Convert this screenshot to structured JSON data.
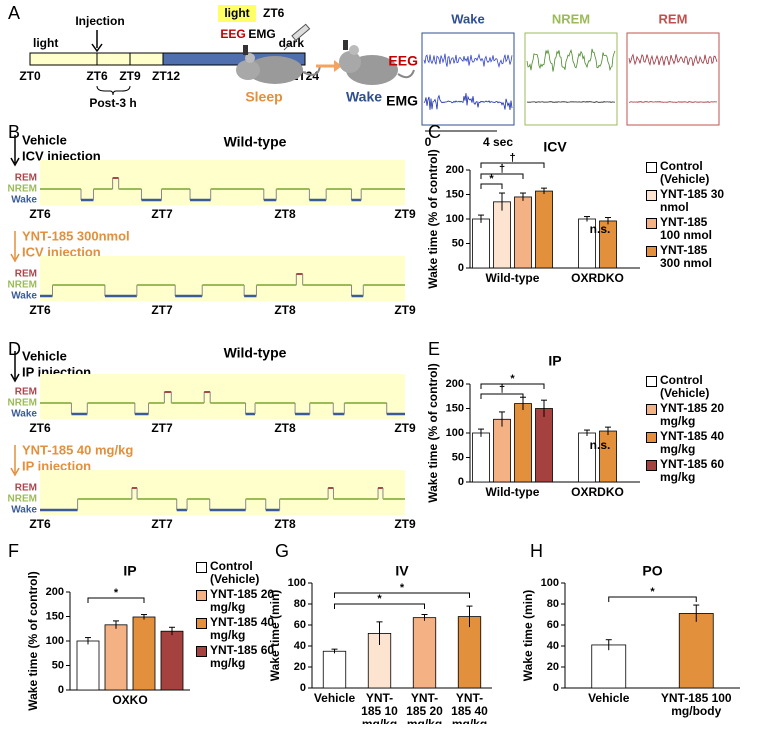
{
  "panel_labels": [
    "A",
    "B",
    "C",
    "D",
    "E",
    "F",
    "G",
    "H"
  ],
  "timeline": {
    "light": "light",
    "dark": "dark",
    "injection": "Injection",
    "ticks": [
      "ZT0",
      "ZT6",
      "ZT9",
      "ZT12",
      "ZT24"
    ],
    "window": "Post-3 h"
  },
  "schematic": {
    "light": "light",
    "time": "ZT6",
    "eeg": "EEG",
    "emg": "EMG",
    "before": "Sleep",
    "after": "Wake"
  },
  "traces": {
    "states": [
      "Wake",
      "NREM",
      "REM"
    ],
    "rows": [
      "EEG",
      "EMG"
    ],
    "scale": [
      "0",
      "4 sec"
    ]
  },
  "hypnograms": [
    {
      "title": "Wild-type",
      "top": {
        "treatment": "Vehicle",
        "route": "ICV injection"
      },
      "bottom": {
        "treatment": "YNT-185 300nmol",
        "route": "ICV injection"
      },
      "states": [
        "REM",
        "NREM",
        "Wake"
      ],
      "ticks": [
        "ZT6",
        "ZT7",
        "ZT8",
        "ZT9"
      ]
    },
    {
      "title": "Wild-type",
      "top": {
        "treatment": "Vehicle",
        "route": "IP injection"
      },
      "bottom": {
        "treatment": "YNT-185 40 mg/kg",
        "route": "IP injection"
      },
      "states": [
        "REM",
        "NREM",
        "Wake"
      ],
      "ticks": [
        "ZT6",
        "ZT7",
        "ZT8",
        "ZT9"
      ]
    }
  ],
  "chart_data": [
    {
      "type": "bar",
      "title": "ICV",
      "ylabel": "Wake time (% of control)",
      "categories": [
        "Wild-type",
        "OXRDKO"
      ],
      "series": [
        {
          "name": "Control (Vehicle)",
          "color": "#ffffff",
          "values": [
            100,
            100
          ],
          "errors": [
            8,
            5
          ]
        },
        {
          "name": "YNT-185 30 nmol",
          "color": "#fce4d0",
          "values": [
            135,
            null
          ],
          "errors": [
            18,
            null
          ]
        },
        {
          "name": "YNT-185 100 nmol",
          "color": "#f4b183",
          "values": [
            145,
            null
          ],
          "errors": [
            8,
            null
          ]
        },
        {
          "name": "YNT-185 300 nmol",
          "color": "#e2903c",
          "values": [
            157,
            96
          ],
          "errors": [
            6,
            7
          ]
        }
      ],
      "ylim": [
        0,
        200
      ],
      "yticks": [
        0,
        50,
        100,
        150,
        200
      ],
      "annotations": [
        "*",
        "†",
        "†"
      ],
      "note": "n.s."
    },
    {
      "type": "bar",
      "title": "IP",
      "ylabel": "Wake time (% of control)",
      "categories": [
        "Wild-type",
        "OXRDKO"
      ],
      "series": [
        {
          "name": "Control (Vehicle)",
          "color": "#ffffff",
          "values": [
            100,
            100
          ],
          "errors": [
            8,
            6
          ]
        },
        {
          "name": "YNT-185 20 mg/kg",
          "color": "#f4b183",
          "values": [
            128,
            null
          ],
          "errors": [
            15,
            null
          ]
        },
        {
          "name": "YNT-185 40 mg/kg",
          "color": "#e2903c",
          "values": [
            160,
            104
          ],
          "errors": [
            13,
            8
          ]
        },
        {
          "name": "YNT-185 60 mg/kg",
          "color": "#a5423f",
          "values": [
            150,
            null
          ],
          "errors": [
            17,
            null
          ]
        }
      ],
      "ylim": [
        0,
        200
      ],
      "yticks": [
        0,
        50,
        100,
        150,
        200
      ],
      "annotations": [
        "†",
        "*"
      ],
      "note": "n.s."
    },
    {
      "type": "bar",
      "title": "IP",
      "ylabel": "Wake time (% of control)",
      "categories": [
        "OXKO"
      ],
      "series": [
        {
          "name": "Control (Vehicle)",
          "color": "#ffffff",
          "values": [
            100
          ],
          "errors": [
            7
          ]
        },
        {
          "name": "YNT-185 20 mg/kg",
          "color": "#f4b183",
          "values": [
            133
          ],
          "errors": [
            8
          ]
        },
        {
          "name": "YNT-185 40 mg/kg",
          "color": "#e2903c",
          "values": [
            149
          ],
          "errors": [
            5
          ]
        },
        {
          "name": "YNT-185 60 mg/kg",
          "color": "#a5423f",
          "values": [
            120
          ],
          "errors": [
            8
          ]
        }
      ],
      "ylim": [
        0,
        200
      ],
      "yticks": [
        0,
        50,
        100,
        150,
        200
      ],
      "annotations": [
        "*"
      ]
    },
    {
      "type": "bar",
      "title": "IV",
      "ylabel": "Wake time (min)",
      "categories": [
        "Vehicle",
        "YNT-185 10 mg/kg",
        "YNT-185 20 mg/kg",
        "YNT-185 40 mg/kg"
      ],
      "values": [
        35,
        52,
        67,
        68
      ],
      "errors": [
        2,
        11,
        3,
        10
      ],
      "colors": [
        "#ffffff",
        "#fce4d0",
        "#f4b183",
        "#e2903c"
      ],
      "ylim": [
        0,
        100
      ],
      "yticks": [
        0,
        20,
        40,
        60,
        80,
        100
      ],
      "annotations": [
        "*",
        "*"
      ]
    },
    {
      "type": "bar",
      "title": "PO",
      "ylabel": "Wake time (min)",
      "categories": [
        "Vehicle",
        "YNT-185 100 mg/body"
      ],
      "values": [
        41,
        71
      ],
      "errors": [
        5,
        8
      ],
      "colors": [
        "#ffffff",
        "#e2903c"
      ],
      "ylim": [
        0,
        100
      ],
      "yticks": [
        0,
        20,
        40,
        60,
        80,
        100
      ],
      "annotations": [
        "*"
      ]
    }
  ]
}
